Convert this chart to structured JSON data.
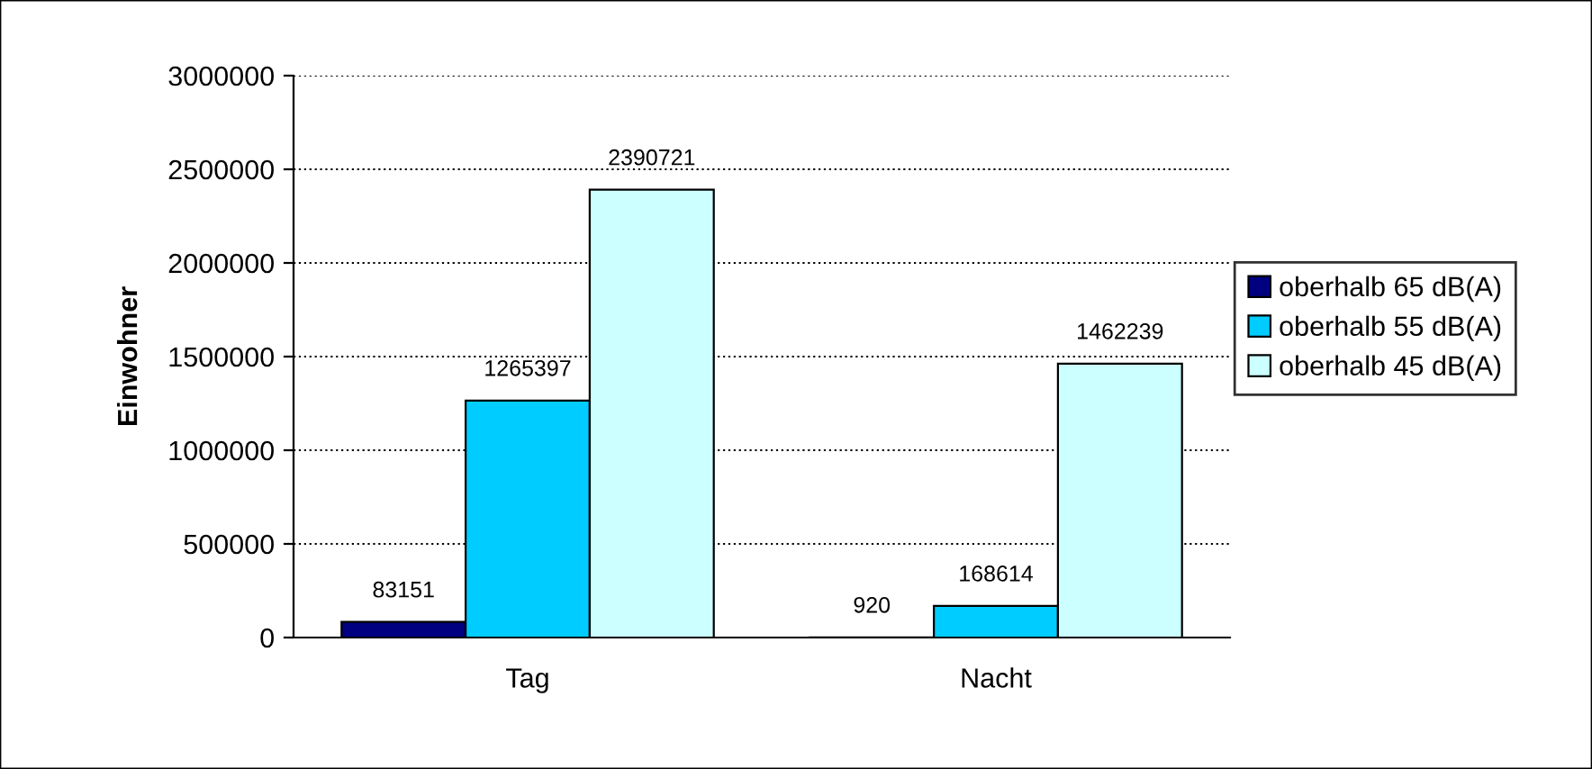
{
  "chart_data": {
    "type": "bar",
    "ylabel": "Einwohner",
    "categories": [
      "Tag",
      "Nacht"
    ],
    "series": [
      {
        "name": "oberhalb 65 dB(A)",
        "color": "#000080",
        "values": [
          83151,
          920
        ]
      },
      {
        "name": "oberhalb 55 dB(A)",
        "color": "#00ccff",
        "values": [
          1265397,
          168614
        ]
      },
      {
        "name": "oberhalb 45 dB(A)",
        "color": "#ccffff",
        "values": [
          2390721,
          1462239
        ]
      }
    ],
    "ylim": [
      0,
      3000000
    ],
    "yticks": [
      0,
      500000,
      1000000,
      1500000,
      2000000,
      2500000,
      3000000
    ],
    "grid": "y",
    "legend": "right",
    "data_labels": true
  }
}
